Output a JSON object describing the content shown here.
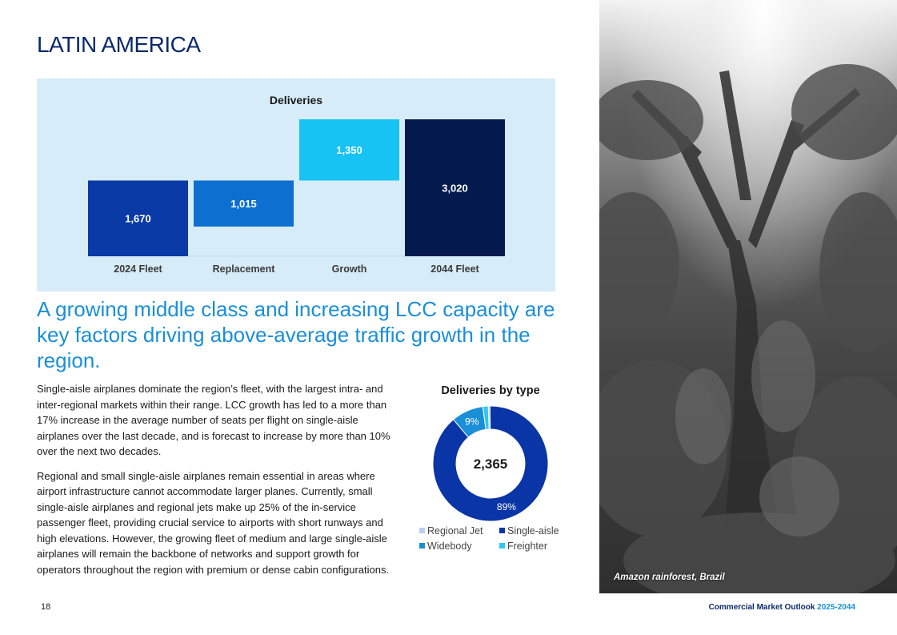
{
  "page": {
    "title": "LATIN AMERICA",
    "headline": "A growing middle class and increasing LCC capacity are key factors driving above-average traffic growth in the region.",
    "paragraphs": [
      "Single-aisle airplanes dominate the region’s fleet, with the largest intra- and inter-regional markets within their range. LCC growth has led to a more than 17% increase in the average number of seats per flight on single-aisle airplanes over the last decade, and is forecast to increase by more than 10% over the next two decades.",
      "Regional and small single-aisle airplanes remain essential in areas where airport infrastructure cannot accommodate larger planes. Currently, small single-aisle airplanes and regional jets make up 25% of the in-service passenger fleet, providing crucial service to airports with short runways and high elevations. However, the growing fleet of medium and large single-aisle airplanes will remain the backbone of networks and support growth for operators throughout the region with premium or dense cabin configurations."
    ],
    "photo_caption": "Amazon rainforest, Brazil",
    "page_number": "18",
    "footer_text": "Commercial Market Outlook",
    "footer_years": "2025-2044"
  },
  "colors": {
    "title": "#0a2a6b",
    "headline": "#1a8fd8",
    "chart_bg": "#d6ecf8",
    "fleet_2024": "#0a3aa6",
    "replacement": "#0d6fcf",
    "growth": "#16c3f2",
    "fleet_2044": "#041a4f",
    "regional_jet": "#b9cff0",
    "single_aisle": "#0a35a6",
    "widebody": "#1a8fd8",
    "freighter": "#2ec8f0"
  },
  "chart_data": [
    {
      "type": "bar",
      "subtype": "waterfall",
      "title": "Deliveries",
      "categories": [
        "2024 Fleet",
        "Replacement",
        "Growth",
        "2044 Fleet"
      ],
      "values": [
        1670,
        1015,
        1350,
        3020
      ],
      "value_labels": [
        "1,670",
        "1,015",
        "1,350",
        "3,020"
      ],
      "bases": [
        0,
        655,
        1670,
        0
      ],
      "colors": [
        "#0a3aa6",
        "#0d6fcf",
        "#16c3f2",
        "#041a4f"
      ],
      "ylim": [
        0,
        3020
      ],
      "xlabel": "",
      "ylabel": "",
      "grid": false
    },
    {
      "type": "pie",
      "subtype": "donut",
      "title": "Deliveries by type",
      "center_label": "2,365",
      "series": [
        {
          "name": "Regional Jet",
          "value": 0.5,
          "color": "#b9cff0"
        },
        {
          "name": "Single-aisle",
          "value": 89,
          "color": "#0a35a6",
          "label": "89%"
        },
        {
          "name": "Widebody",
          "value": 9,
          "color": "#1a8fd8",
          "label": "9%"
        },
        {
          "name": "Freighter",
          "value": 1.5,
          "color": "#2ec8f0"
        }
      ],
      "legend_order": [
        "Regional Jet",
        "Single-aisle",
        "Widebody",
        "Freighter"
      ],
      "legend_position": "bottom"
    }
  ]
}
